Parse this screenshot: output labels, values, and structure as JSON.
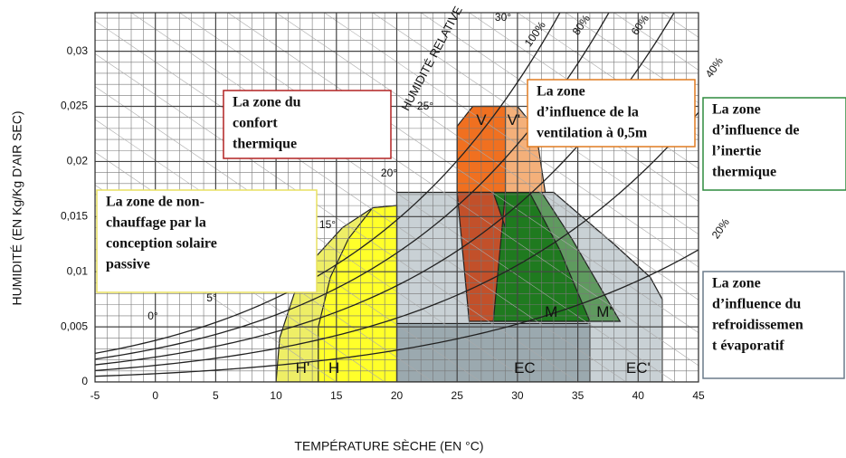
{
  "chart_data": {
    "type": "psychrometric",
    "xlabel": "TEMPÉRATURE SÈCHE (EN °C)",
    "ylabel": "HUMIDITÉ (EN Kg/Kg D'AIR SEC)",
    "curve_title": "HUMIDITÉ RELATIVE",
    "xlim": [
      -5,
      45
    ],
    "xticks": [
      -5,
      0,
      5,
      10,
      15,
      20,
      25,
      30,
      35,
      40,
      45
    ],
    "ylim": [
      0,
      0.0335
    ],
    "yticks": [
      0,
      {
        "value": 0.005,
        "label": "0,005"
      },
      {
        "value": 0.01,
        "label": "0,01"
      },
      {
        "value": 0.015,
        "label": "0,015"
      },
      {
        "value": 0.02,
        "label": "0,02"
      },
      {
        "value": 0.025,
        "label": "0,025"
      },
      {
        "value": 0.03,
        "label": "0,03"
      }
    ],
    "grid": true,
    "rh_curves": [
      {
        "value": 100,
        "label": "100%"
      },
      {
        "value": 80,
        "label": "80%"
      },
      {
        "value": 60,
        "label": "60%"
      },
      {
        "value": 40,
        "label": "40%"
      },
      {
        "value": 20,
        "label": "20%"
      }
    ],
    "wet_bulb_labels": [
      "0°",
      "5°",
      "15°",
      "20°",
      "25°",
      "30°"
    ],
    "zones": [
      {
        "name": "EC'",
        "color": "#c9d1d5",
        "x": [
          20,
          42,
          42,
          41,
          38,
          33,
          20
        ],
        "y": [
          0,
          0,
          0.0075,
          0.0095,
          0.0125,
          0.0172,
          0.0172
        ]
      },
      {
        "name": "EC",
        "color": "#9ba9af",
        "x": [
          20,
          36,
          36,
          20
        ],
        "y": [
          0,
          0,
          0.0053,
          0.0053
        ]
      },
      {
        "name": "H'",
        "color": "#eeee66",
        "x": [
          10,
          10.3,
          11.5,
          13,
          15.5,
          18,
          20,
          20
        ],
        "y": [
          0,
          0.004,
          0.008,
          0.011,
          0.014,
          0.0158,
          0.016,
          0
        ]
      },
      {
        "name": "H",
        "color": "#ffff2a",
        "x": [
          13.5,
          13.5,
          14.5,
          16,
          18,
          20,
          20
        ],
        "y": [
          0,
          0.005,
          0.0095,
          0.013,
          0.0158,
          0.016,
          0
        ]
      },
      {
        "name": "M'",
        "color": "#5f9a5f",
        "x": [
          27,
          32,
          34.5,
          38.5,
          28
        ],
        "y": [
          0.0172,
          0.0172,
          0.013,
          0.0055,
          0.0055
        ]
      },
      {
        "name": "M",
        "color": "#1f7a1f",
        "x": [
          27,
          31,
          33.5,
          36,
          28
        ],
        "y": [
          0.0172,
          0.0172,
          0.012,
          0.0055,
          0.0055
        ]
      },
      {
        "name": "V'",
        "color": "#f4b07a",
        "x": [
          27,
          30,
          31.5,
          32.3,
          27
        ],
        "y": [
          0.025,
          0.025,
          0.023,
          0.0172,
          0.0172
        ]
      },
      {
        "name": "V",
        "color": "#f07020",
        "x": [
          25,
          26.3,
          29,
          29,
          25
        ],
        "y": [
          0.0232,
          0.025,
          0.025,
          0.0172,
          0.0172
        ]
      },
      {
        "name": "",
        "color": "#c2502a",
        "x": [
          25,
          28,
          29,
          29,
          28,
          26
        ],
        "y": [
          0.0172,
          0.0172,
          0.014,
          0.0172,
          0.0055,
          0.0055
        ]
      }
    ],
    "callouts": [
      {
        "lines": [
          "La zone du",
          "confort",
          "thermique"
        ],
        "color": "#b22222"
      },
      {
        "lines": [
          "La zone",
          "d’influence de la",
          "ventilation à 0,5m"
        ],
        "color": "#e07b20"
      },
      {
        "lines": [
          "La zone",
          "d’influence de",
          "l’inertie",
          "thermique"
        ],
        "color": "#2e8b3e"
      },
      {
        "lines": [
          "La zone de non-",
          "chauffage par la",
          "conception solaire",
          "passive"
        ],
        "color": "#e8e060"
      },
      {
        "lines": [
          "La zone",
          "d’influence du",
          "refroidissemen",
          "t évaporatif"
        ],
        "color": "#6a7a8a"
      }
    ]
  }
}
